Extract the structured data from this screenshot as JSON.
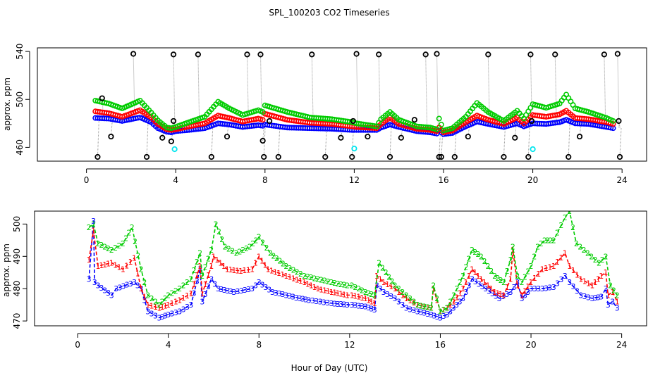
{
  "figure": {
    "title": "SPL_100203  CO2 Timeseries",
    "shared_xlabel": "Hour of Day (UTC)"
  },
  "colors": {
    "tier0": "#0000ff",
    "tier1": "#ff0000",
    "tier2": "#00cc00",
    "flag_black": "#000000",
    "flag_cyan": "#00e5ee",
    "gray_line": "#999999"
  },
  "chart_data": [
    {
      "type": "scatter",
      "id": "top",
      "title": "",
      "xlabel": "",
      "ylabel": "approx. ppm",
      "xlim": [
        -2.2,
        25.1
      ],
      "ylim": [
        448.5,
        543
      ],
      "xticks": [
        0,
        4,
        8,
        12,
        16,
        20,
        24
      ],
      "yticks": [
        460,
        500,
        540
      ],
      "series": [
        {
          "name": "blue",
          "color_key": "tier0",
          "marker": "circle",
          "x": [
            0.4,
            1.0,
            1.6,
            2.4,
            2.9,
            3.2,
            3.6,
            3.8,
            4.0,
            4.6,
            5.3,
            5.9,
            6.4,
            7.0,
            7.7,
            7.9,
            8.0,
            9.0,
            10.0,
            11.0,
            11.9,
            12.1,
            13.0,
            13.2,
            13.6,
            14.0,
            14.8,
            15.4,
            15.7,
            15.8,
            16.0,
            16.4,
            17.0,
            17.5,
            18.0,
            18.7,
            19.3,
            19.6,
            20.0,
            20.6,
            21.2,
            21.5,
            21.9,
            22.5,
            23.3,
            23.6
          ],
          "y": [
            484.5,
            484,
            482,
            485,
            481,
            476,
            473,
            472.5,
            473.5,
            474.5,
            476,
            480,
            479,
            477,
            478.5,
            478,
            479,
            476.5,
            476,
            475.5,
            474.5,
            474.5,
            474.5,
            476.5,
            479,
            477,
            473.5,
            472.5,
            471.5,
            474,
            471,
            472,
            477.5,
            481.5,
            479.5,
            477,
            480,
            477.5,
            480,
            479.5,
            481,
            483,
            480,
            479.5,
            477,
            476
          ]
        },
        {
          "name": "red",
          "color_key": "tier1",
          "marker": "circle",
          "x": [
            0.4,
            1.0,
            1.6,
            2.4,
            2.9,
            3.2,
            3.6,
            3.8,
            4.0,
            4.6,
            5.3,
            5.9,
            6.4,
            7.0,
            7.7,
            7.9,
            8.0,
            9.0,
            10.0,
            11.0,
            11.9,
            12.1,
            13.0,
            13.2,
            13.6,
            14.0,
            14.8,
            15.4,
            15.7,
            15.8,
            16.0,
            16.4,
            17.0,
            17.5,
            18.0,
            18.7,
            19.3,
            19.6,
            20.0,
            20.6,
            21.2,
            21.5,
            21.9,
            22.5,
            23.3,
            23.6
          ],
          "y": [
            490,
            488.5,
            485.5,
            491,
            485,
            479.5,
            475,
            474.5,
            475,
            477.5,
            480,
            486.5,
            484.5,
            481.5,
            484,
            483,
            488,
            483,
            480.5,
            479.5,
            477.5,
            477,
            476,
            479.5,
            485,
            479.5,
            475.5,
            474.5,
            473.5,
            476.5,
            472.5,
            474,
            481,
            486.5,
            483,
            479.5,
            485,
            480,
            487,
            485.5,
            487.5,
            490.5,
            484.5,
            483.5,
            481,
            479.5
          ]
        },
        {
          "name": "green",
          "color_key": "tier2",
          "marker": "circle",
          "x": [
            0.4,
            1.0,
            1.6,
            2.4,
            2.9,
            3.2,
            3.6,
            3.8,
            4.0,
            4.6,
            5.3,
            5.9,
            6.4,
            7.0,
            7.7,
            7.9,
            8.0,
            9.0,
            10.0,
            11.0,
            11.9,
            12.1,
            13.0,
            13.2,
            13.6,
            14.0,
            14.8,
            15.4,
            15.7,
            15.8,
            16.0,
            16.4,
            17.0,
            17.5,
            18.0,
            18.7,
            19.3,
            19.6,
            20.0,
            20.6,
            21.2,
            21.5,
            21.9,
            22.5,
            23.3,
            23.6
          ],
          "y": [
            499,
            496.5,
            492.5,
            499,
            489,
            482.5,
            476.5,
            476,
            477,
            481,
            485.5,
            498,
            492.5,
            487,
            491,
            489.5,
            495,
            489.5,
            485,
            483.5,
            481,
            480,
            477.5,
            483.5,
            489.5,
            483,
            477.5,
            476.5,
            475,
            484,
            474,
            476,
            485.5,
            497,
            489.5,
            482,
            490.5,
            484,
            496,
            493,
            496.5,
            504,
            492.5,
            489.5,
            484.5,
            482
          ]
        },
        {
          "name": "cyan flags",
          "color_key": "flag_cyan",
          "marker": "circle",
          "x": [
            3.95,
            12.0,
            20.0
          ],
          "y": [
            458.5,
            459,
            458.5
          ]
        },
        {
          "name": "black flags",
          "color_key": "flag_black",
          "marker": "circle",
          "x": [
            0.5,
            0.7,
            1.1,
            2.1,
            2.7,
            3.4,
            3.8,
            3.9,
            3.9,
            5.0,
            5.6,
            6.3,
            7.2,
            7.8,
            7.9,
            7.95,
            8.2,
            8.6,
            10.1,
            10.7,
            11.4,
            11.9,
            11.95,
            12.1,
            12.6,
            13.1,
            13.6,
            14.1,
            14.7,
            15.2,
            15.7,
            15.8,
            15.9,
            16.5,
            17.1,
            18.0,
            18.7,
            19.2,
            19.8,
            19.9,
            19.95,
            21.0,
            21.6,
            22.1,
            23.2,
            23.8,
            23.85,
            23.9
          ],
          "y": [
            452,
            501,
            469,
            538,
            452,
            468,
            465,
            537.5,
            482,
            537.5,
            452,
            469,
            537.5,
            537.5,
            465.5,
            452,
            482,
            452,
            537.5,
            452,
            468,
            452,
            482,
            538,
            469,
            537.5,
            452,
            468,
            483,
            537.5,
            538,
            452,
            452,
            452,
            469,
            537.5,
            452,
            468,
            452,
            537.5,
            482,
            537.5,
            452,
            469,
            537.5,
            538,
            482,
            452
          ]
        }
      ]
    },
    {
      "type": "line",
      "id": "bottom",
      "title": "",
      "xlabel": "Hour of Day (UTC)",
      "ylabel": "approx. ppm",
      "xlim": [
        -1.9,
        25.1
      ],
      "ylim": [
        468.5,
        504
      ],
      "xticks": [
        0,
        4,
        8,
        12,
        16,
        20,
        24
      ],
      "yticks": [
        470,
        480,
        490,
        500
      ],
      "series": [
        {
          "name": "3",
          "color_key": "tier0",
          "marker": "3",
          "x": [
            0.5,
            0.7,
            0.75,
            0.9,
            1.5,
            1.7,
            2.5,
            2.8,
            3.1,
            3.6,
            4.0,
            4.5,
            5.0,
            5.4,
            5.5,
            5.9,
            6.2,
            6.9,
            7.7,
            8.0,
            8.6,
            9.2,
            9.8,
            10.2,
            10.7,
            11.2,
            11.9,
            12.1,
            12.7,
            13.1,
            13.2,
            13.5,
            14.0,
            14.5,
            15.0,
            15.6,
            16.0,
            16.3,
            17.0,
            17.4,
            18.0,
            18.6,
            19.1,
            19.4,
            19.6,
            20.0,
            20.5,
            21.0,
            21.5,
            21.7,
            22.2,
            22.7,
            23.1,
            23.3,
            23.4,
            23.6,
            23.8
          ],
          "y": [
            483,
            501,
            482,
            481,
            478,
            480,
            482,
            480,
            473,
            471,
            472,
            473,
            475,
            486,
            476,
            483,
            480,
            479,
            480,
            482,
            479,
            478,
            477,
            476.5,
            476,
            475.5,
            475,
            475,
            474.5,
            473.5,
            481,
            479,
            477,
            474,
            473,
            472,
            471,
            472,
            477,
            483,
            480,
            477,
            479,
            482,
            477,
            480,
            480,
            480.5,
            484,
            482,
            478,
            477,
            477.5,
            480,
            475,
            476,
            474
          ]
        },
        {
          "name": "1",
          "color_key": "tier1",
          "marker": "1",
          "x": [
            0.5,
            0.7,
            0.9,
            1.5,
            2.0,
            2.5,
            2.8,
            3.1,
            3.6,
            4.0,
            4.5,
            5.0,
            5.4,
            5.5,
            5.9,
            6.0,
            6.6,
            7.2,
            7.7,
            8.0,
            8.4,
            9.2,
            10.0,
            10.6,
            11.2,
            11.9,
            12.1,
            12.7,
            13.1,
            13.2,
            13.5,
            14.0,
            14.5,
            15.0,
            15.6,
            15.7,
            16.0,
            16.3,
            16.6,
            17.0,
            17.4,
            17.8,
            18.4,
            18.8,
            19.1,
            19.2,
            19.4,
            19.6,
            20.0,
            20.5,
            21.0,
            21.5,
            21.7,
            22.2,
            22.7,
            23.1,
            23.3,
            23.4,
            23.6,
            23.8
          ],
          "y": [
            489,
            498,
            487,
            488,
            486,
            489.5,
            480,
            475,
            474,
            475,
            476.5,
            478.5,
            487,
            478.5,
            487,
            490,
            486,
            485.5,
            486,
            490,
            486,
            484,
            482,
            480,
            479,
            478,
            478,
            477,
            475.5,
            484,
            482,
            480,
            477,
            475,
            474,
            480,
            473,
            474,
            476,
            480,
            486,
            483,
            479,
            478,
            483,
            492,
            481,
            478,
            482,
            486,
            487,
            491,
            487,
            483,
            481,
            484,
            485,
            478,
            479,
            476
          ]
        },
        {
          "name": "2",
          "color_key": "tier2",
          "marker": "2",
          "x": [
            0.5,
            0.7,
            0.9,
            1.5,
            2.0,
            2.4,
            2.8,
            3.1,
            3.6,
            4.0,
            4.5,
            5.0,
            5.4,
            5.5,
            5.9,
            6.1,
            6.5,
            7.0,
            7.6,
            8.0,
            8.5,
            9.2,
            10.0,
            10.6,
            11.2,
            11.9,
            12.1,
            12.7,
            13.1,
            13.3,
            13.6,
            14.0,
            14.5,
            15.0,
            15.6,
            15.7,
            16.0,
            16.3,
            16.6,
            17.0,
            17.4,
            17.8,
            18.4,
            18.8,
            19.1,
            19.2,
            19.4,
            19.6,
            20.0,
            20.3,
            20.6,
            21.0,
            21.5,
            21.7,
            22.0,
            22.5,
            23.0,
            23.3,
            23.5,
            23.8
          ],
          "y": [
            499,
            500,
            494,
            492,
            494,
            499,
            486,
            478,
            475,
            478,
            480,
            483,
            491,
            484,
            492,
            500,
            493,
            491,
            493,
            496,
            491,
            487,
            484,
            483,
            482,
            481,
            481,
            479,
            478,
            488,
            485,
            481,
            478,
            475,
            474,
            481,
            473,
            474,
            478,
            484,
            492,
            490,
            484,
            482,
            489,
            493,
            484,
            482,
            487,
            493,
            495,
            495,
            502,
            504,
            494,
            491,
            488,
            490,
            481,
            478
          ]
        }
      ]
    }
  ]
}
